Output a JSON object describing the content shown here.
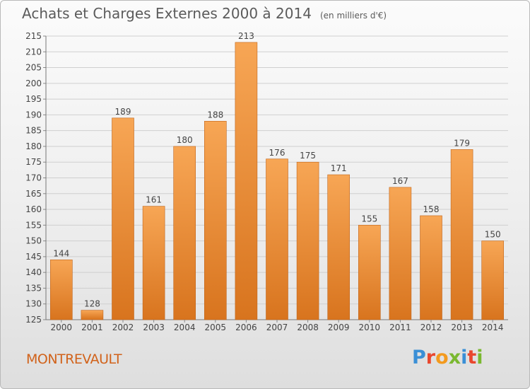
{
  "header": {
    "title": "Achats et Charges Externes 2000 à 2014",
    "subtitle": "(en milliers d'€)"
  },
  "footer": {
    "label": "MONTREVAULT",
    "logo_text": "Proxiti",
    "logo_colors": [
      "#3a8fd6",
      "#e9472e",
      "#f39a1e",
      "#7ab830",
      "#3a8fd6",
      "#e9472e",
      "#7ab830"
    ]
  },
  "colors": {
    "bar_top": "#f7a655",
    "bar_bottom": "#d8741e",
    "axis_text": "#444444",
    "grid": "#cfcfcf",
    "title": "#5b5b5b",
    "label": "#d1621a"
  },
  "chart_data": {
    "type": "bar",
    "categories": [
      "2000",
      "2001",
      "2002",
      "2003",
      "2004",
      "2005",
      "2006",
      "2007",
      "2008",
      "2009",
      "2010",
      "2011",
      "2012",
      "2013",
      "2014"
    ],
    "values": [
      144,
      128,
      189,
      161,
      180,
      188,
      213,
      176,
      175,
      171,
      155,
      167,
      158,
      179,
      150
    ],
    "ylim": [
      125,
      215
    ],
    "yticks": [
      125,
      130,
      135,
      140,
      145,
      150,
      155,
      160,
      165,
      170,
      175,
      180,
      185,
      190,
      195,
      200,
      205,
      210,
      215
    ],
    "grid": true,
    "data_labels": true
  }
}
